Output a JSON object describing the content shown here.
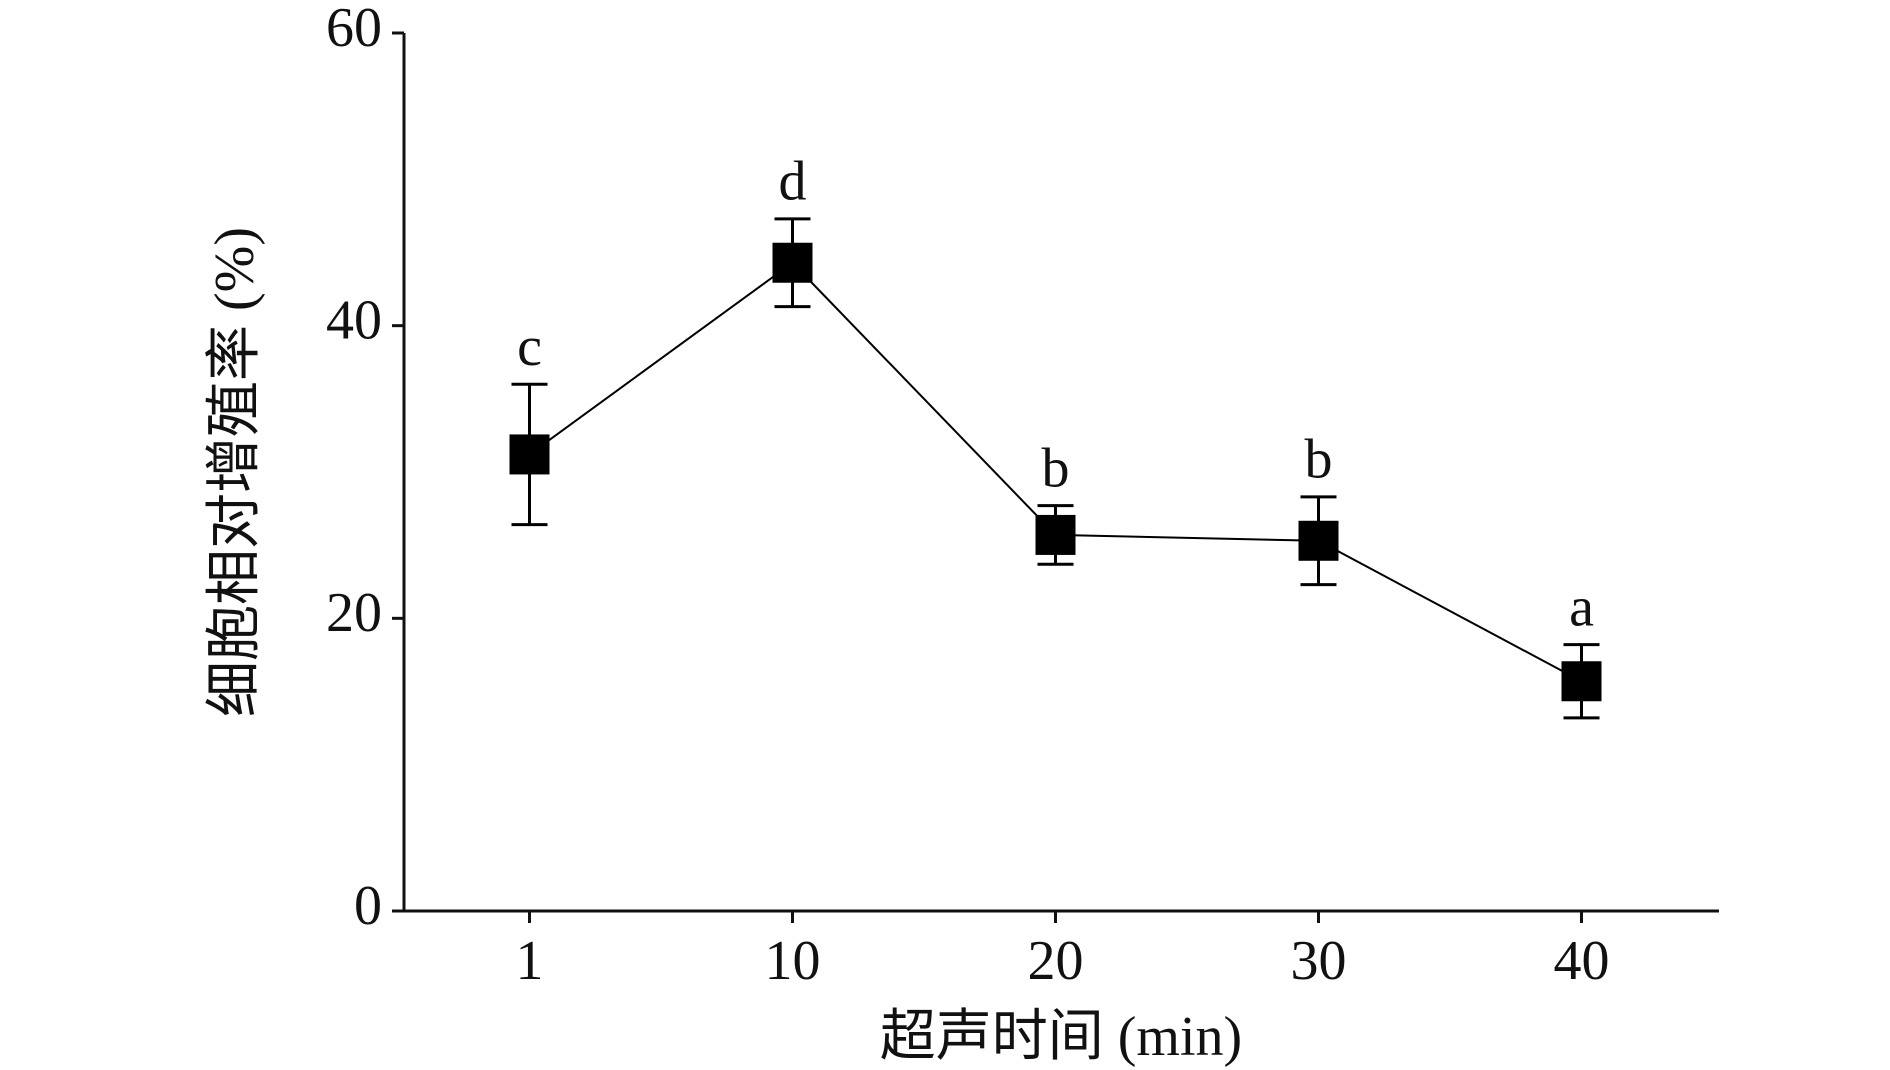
{
  "chart_data": {
    "type": "line",
    "x_label": "超声时间 (min)",
    "y_label": "细胞相对增殖率 (%)",
    "categories": [
      "1",
      "10",
      "20",
      "30",
      "40"
    ],
    "series": [
      {
        "color": "#000000",
        "values": [
          31.2,
          44.3,
          25.7,
          25.3,
          15.7
        ],
        "errors": [
          4.8,
          3.0,
          2.0,
          3.0,
          2.5
        ],
        "significance": [
          "c",
          "d",
          "b",
          "b",
          "a"
        ]
      }
    ],
    "ylim": [
      0,
      60
    ],
    "yticks": [
      0,
      20,
      40,
      60
    ],
    "grid": false
  }
}
